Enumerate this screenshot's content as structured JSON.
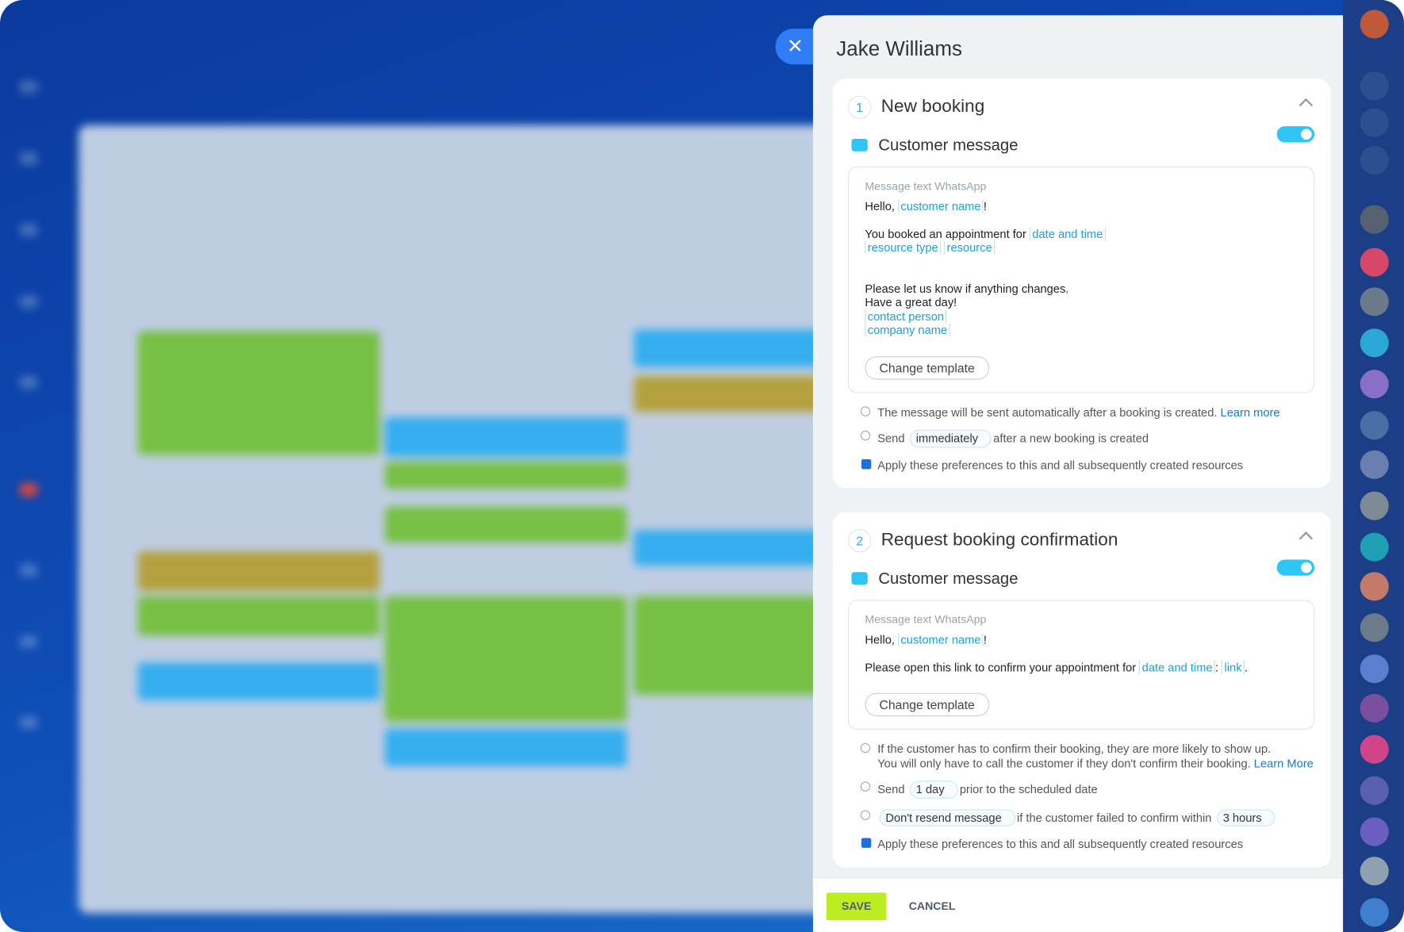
{
  "header": {
    "title": "Jake Williams"
  },
  "sections": [
    {
      "number": 1,
      "title": "New booking",
      "channel": "Customer message",
      "template_label": "Message text WhatsApp",
      "message": [
        [
          [
            {
              "text": "Hello, "
            },
            {
              "variable": "customer name"
            },
            {
              "text": "!"
            }
          ]
        ],
        [
          [
            {
              "text": "You booked an appointment for "
            },
            {
              "variable": "date and time"
            }
          ],
          [
            {
              "variable": "resource type"
            },
            {
              "text": " "
            },
            {
              "variable": "resource"
            }
          ]
        ],
        [
          [
            {
              "text": "Please let us know if anything changes."
            }
          ],
          [
            {
              "text": "Have a great day!"
            }
          ],
          [
            {
              "variable": "contact person"
            }
          ],
          [
            {
              "variable": "company name"
            }
          ]
        ]
      ],
      "change_template": "Change template",
      "info": [
        "The message will be sent automatically after a booking is created."
      ],
      "learn_more": "Learn more",
      "options": [
        [
          {
            "text": "Send"
          },
          {
            "select": "immediately"
          },
          {
            "text": "after a new booking is created"
          }
        ]
      ],
      "apply": "Apply these preferences to this and all subsequently created resources"
    },
    {
      "number": 2,
      "title": "Request booking confirmation",
      "channel": "Customer message",
      "template_label": "Message text WhatsApp",
      "message": [
        [
          [
            {
              "text": "Hello, "
            },
            {
              "variable": "customer name"
            },
            {
              "text": "!"
            }
          ]
        ],
        [
          [
            {
              "text": "Please open this link to confirm your appointment for "
            },
            {
              "variable": "date and time"
            },
            {
              "text": ": "
            },
            {
              "variable": "link"
            },
            {
              "text": "."
            }
          ]
        ]
      ],
      "change_template": "Change template",
      "info": [
        "If the customer has to confirm their booking, they are more likely to show up.",
        "You will only have to call the customer if they don't confirm their booking."
      ],
      "learn_more": "Learn More",
      "options": [
        [
          {
            "text": "Send"
          },
          {
            "select": "1 day"
          },
          {
            "text": "prior to the scheduled date"
          }
        ],
        [
          {
            "select": "Don't resend message"
          },
          {
            "text": "if the customer failed to confirm within"
          },
          {
            "select": "3 hours"
          }
        ]
      ],
      "apply": "Apply these preferences to this and all subsequently created resources"
    }
  ],
  "footer": {
    "save": "SAVE",
    "cancel": "CANCEL"
  }
}
